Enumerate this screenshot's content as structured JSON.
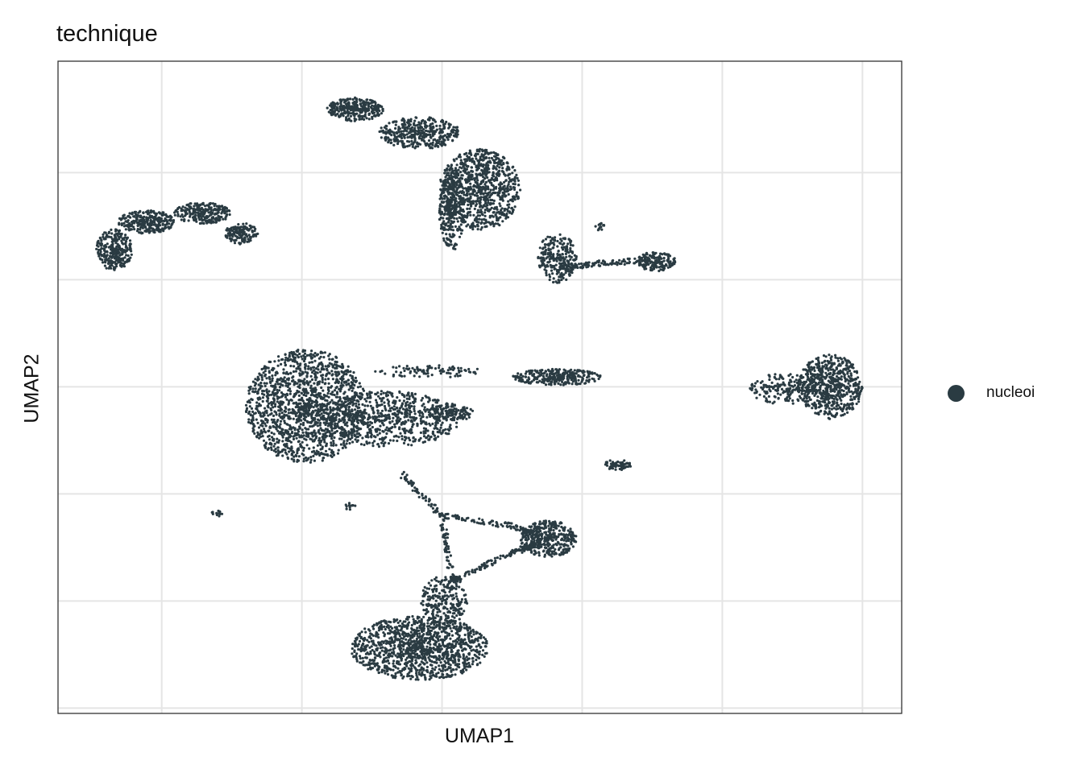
{
  "chart_data": {
    "type": "scatter",
    "title": "technique",
    "xlabel": "UMAP1",
    "ylabel": "UMAP2",
    "tick_labels_shown": false,
    "grid": true,
    "xlim": [
      -0.74,
      5.28
    ],
    "ylim": [
      -0.05,
      6.04
    ],
    "x_breaks": [
      0,
      1,
      2,
      3,
      4,
      5
    ],
    "y_breaks": [
      0,
      1,
      2,
      3,
      4,
      5
    ],
    "legend": {
      "position": "right",
      "entries": [
        {
          "label": "nucleoi",
          "color": "#2a3b42"
        }
      ]
    },
    "point_color": "#2a3b42",
    "clusters": [
      {
        "cx": 1.03,
        "cy": 2.82,
        "rx": 0.43,
        "ry": 0.53,
        "n": 1500
      },
      {
        "cx": 1.61,
        "cy": 2.7,
        "rx": 0.52,
        "ry": 0.26,
        "n": 700
      },
      {
        "cx": 2.07,
        "cy": 2.76,
        "rx": 0.16,
        "ry": 0.08,
        "n": 120
      },
      {
        "cx": 1.84,
        "cy": 0.56,
        "rx": 0.49,
        "ry": 0.3,
        "n": 1200
      },
      {
        "cx": 2.01,
        "cy": 0.98,
        "rx": 0.17,
        "ry": 0.25,
        "n": 250
      },
      {
        "cx": 2.76,
        "cy": 1.58,
        "rx": 0.2,
        "ry": 0.17,
        "n": 350
      },
      {
        "cx": 1.38,
        "cy": 5.59,
        "rx": 0.2,
        "ry": 0.11,
        "n": 300
      },
      {
        "cx": 1.84,
        "cy": 5.37,
        "rx": 0.29,
        "ry": 0.15,
        "n": 400
      },
      {
        "cx": 2.27,
        "cy": 4.84,
        "rx": 0.29,
        "ry": 0.38,
        "n": 900
      },
      {
        "cx": 2.07,
        "cy": 4.65,
        "rx": 0.09,
        "ry": 0.38,
        "n": 250
      },
      {
        "cx": 2.82,
        "cy": 4.2,
        "rx": 0.14,
        "ry": 0.23,
        "n": 250
      },
      {
        "cx": 3.53,
        "cy": 4.17,
        "rx": 0.14,
        "ry": 0.09,
        "n": 150
      },
      {
        "cx": -0.34,
        "cy": 4.28,
        "rx": 0.13,
        "ry": 0.19,
        "n": 300
      },
      {
        "cx": -0.11,
        "cy": 4.54,
        "rx": 0.2,
        "ry": 0.11,
        "n": 300
      },
      {
        "cx": 0.29,
        "cy": 4.62,
        "rx": 0.2,
        "ry": 0.1,
        "n": 250
      },
      {
        "cx": 0.57,
        "cy": 4.43,
        "rx": 0.12,
        "ry": 0.1,
        "n": 150
      },
      {
        "cx": 4.77,
        "cy": 3.0,
        "rx": 0.23,
        "ry": 0.3,
        "n": 600
      },
      {
        "cx": 4.45,
        "cy": 2.98,
        "rx": 0.26,
        "ry": 0.15,
        "n": 180
      },
      {
        "cx": 2.82,
        "cy": 3.09,
        "rx": 0.32,
        "ry": 0.075,
        "n": 300
      },
      {
        "cx": 1.9,
        "cy": 3.14,
        "rx": 0.4,
        "ry": 0.06,
        "n": 90
      },
      {
        "cx": 3.25,
        "cy": 2.27,
        "rx": 0.1,
        "ry": 0.05,
        "n": 60
      },
      {
        "cx": 3.13,
        "cy": 4.5,
        "rx": 0.04,
        "ry": 0.04,
        "n": 15
      },
      {
        "cx": 0.4,
        "cy": 1.82,
        "rx": 0.06,
        "ry": 0.03,
        "n": 15
      },
      {
        "cx": 1.35,
        "cy": 1.88,
        "rx": 0.04,
        "ry": 0.04,
        "n": 12
      }
    ],
    "bridges": [
      [
        [
          1.7,
          2.2
        ],
        [
          2.0,
          1.8
        ],
        [
          2.07,
          1.2
        ],
        [
          2.12,
          1.2
        ]
      ],
      [
        [
          2.1,
          1.2
        ],
        [
          2.5,
          1.45
        ],
        [
          2.7,
          1.55
        ]
      ],
      [
        [
          2.0,
          1.8
        ],
        [
          2.5,
          1.7
        ],
        [
          2.7,
          1.6
        ]
      ],
      [
        [
          2.85,
          4.1
        ],
        [
          3.1,
          4.15
        ],
        [
          3.45,
          4.18
        ]
      ]
    ]
  }
}
